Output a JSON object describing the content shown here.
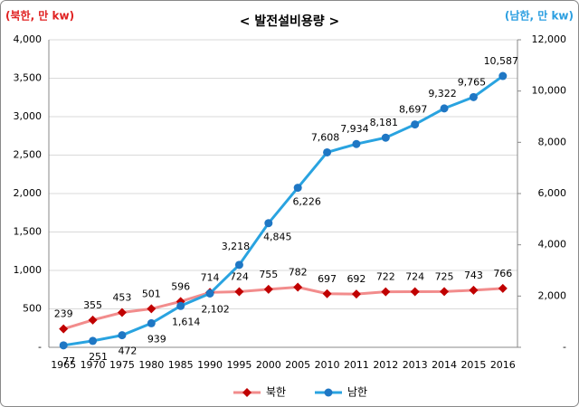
{
  "chart_data": {
    "type": "line",
    "title": "< 발전설비용량 >",
    "y_label": "(북한, 만 kw)",
    "y2_label": "(남한, 만 kw)",
    "categories": [
      "1965",
      "1970",
      "1975",
      "1980",
      "1985",
      "1990",
      "1995",
      "2000",
      "2005",
      "2010",
      "2011",
      "2012",
      "2013",
      "2014",
      "2015",
      "2016"
    ],
    "series": [
      {
        "name": "북한",
        "color": "#f28c8c",
        "marker_color": "#c00000",
        "marker": "diamond",
        "axis": "y",
        "values": [
          239,
          355,
          453,
          501,
          596,
          714,
          724,
          755,
          782,
          697,
          692,
          722,
          724,
          725,
          743,
          766
        ]
      },
      {
        "name": "남한",
        "color": "#29a3e0",
        "marker_color": "#1f77c4",
        "marker": "circle",
        "axis": "y2",
        "values": [
          77,
          251,
          472,
          939,
          1614,
          2102,
          3218,
          4845,
          6226,
          7608,
          7934,
          8181,
          8697,
          9322,
          9765,
          10587
        ],
        "value_labels": [
          "77",
          "251",
          "472",
          "939",
          "1,614",
          "2,102",
          "3,218",
          "4,845",
          "6,226",
          "7,608",
          "7,934",
          "8,181",
          "8,697",
          "9,322",
          "9,765",
          "10,587"
        ]
      }
    ],
    "ylim": [
      0,
      4000
    ],
    "yticks": [
      {
        "value": 0,
        "label": "-"
      },
      500,
      {
        "value": 1000,
        "label": "1,000"
      },
      {
        "value": 1500,
        "label": "1,500"
      },
      {
        "value": 2000,
        "label": "2,000"
      },
      {
        "value": 2500,
        "label": "2,500"
      },
      {
        "value": 3000,
        "label": "3,000"
      },
      {
        "value": 3500,
        "label": "3,500"
      },
      {
        "value": 4000,
        "label": "4,000"
      }
    ],
    "y2lim": [
      0,
      12000
    ],
    "y2ticks": [
      {
        "value": 0,
        "label": "-"
      },
      {
        "value": 2000,
        "label": "2,000"
      },
      {
        "value": 4000,
        "label": "4,000"
      },
      {
        "value": 6000,
        "label": "6,000"
      },
      {
        "value": 8000,
        "label": "8,000"
      },
      {
        "value": 10000,
        "label": "10,000"
      },
      {
        "value": 12000,
        "label": "12,000"
      }
    ],
    "grid": true,
    "legend": "bottom"
  }
}
